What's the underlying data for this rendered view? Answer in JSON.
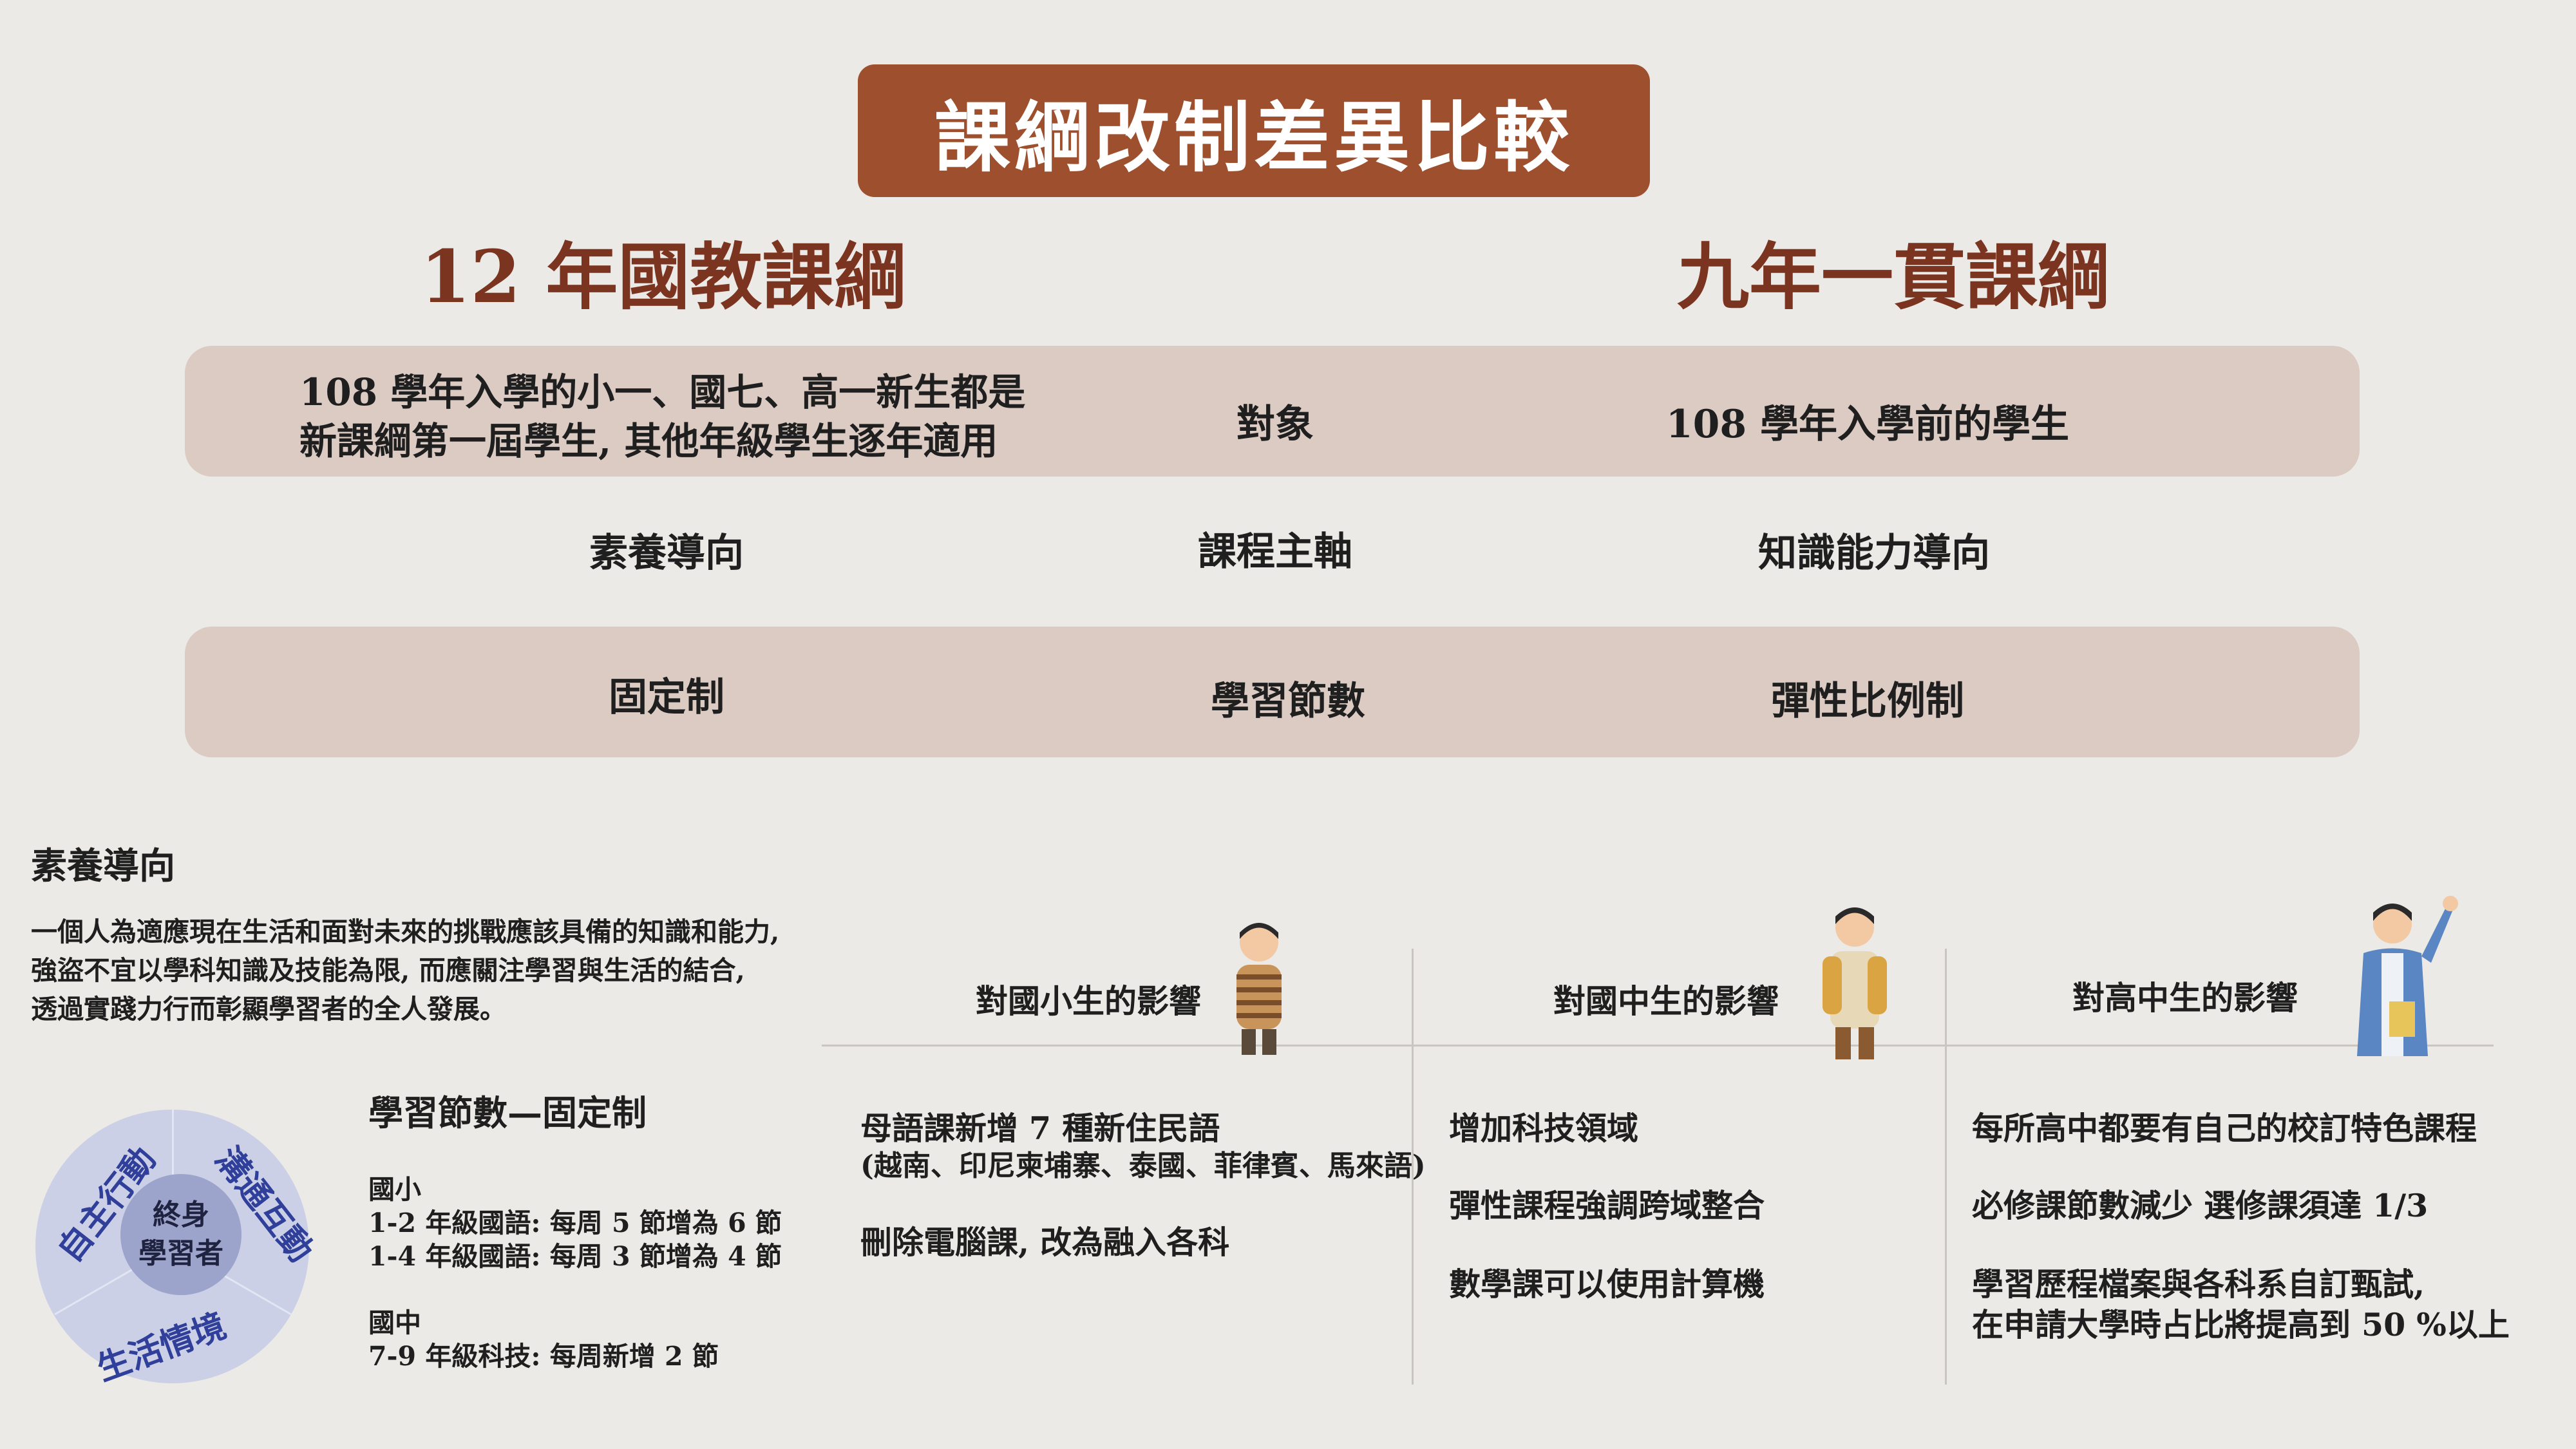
{
  "title": "課綱改制差異比較",
  "columns": {
    "left": "12 年國教課綱",
    "right": "九年一貫課綱"
  },
  "comparison": [
    {
      "criterion": "對象",
      "left_lines": [
        "108 學年入學的小一、國七、高一新生都是",
        "新課綱第一屆學生, 其他年級學生逐年適用"
      ],
      "right": "108 學年入學前的學生"
    },
    {
      "criterion": "課程主軸",
      "left": "素養導向",
      "right": "知識能力導向"
    },
    {
      "criterion": "學習節數",
      "left": "固定制",
      "right": "彈性比例制"
    }
  ],
  "definition": {
    "title": "素養導向",
    "lines": [
      "一個人為適應現在生活和面對未來的挑戰應該具備的知識和能力,",
      "強盜不宜以學科知識及技能為限, 而應關注學習與生活的結合,",
      "透過實踐力行而彰顯學習者的全人發展。"
    ]
  },
  "diagram": {
    "center": [
      "終身",
      "學習者"
    ],
    "ring": [
      "自主行動",
      "溝通互動",
      "生活情境"
    ],
    "colors": {
      "outer": "#cbd0e6",
      "inner": "#9da4cc",
      "text": "#2f3f9a"
    }
  },
  "lessons": {
    "title": "學習節數—固定制",
    "lines": [
      "國小",
      "1-2 年級國語: 每周 5 節增為 6 節",
      "1-4 年級國語: 每周 3 節增為 4 節",
      "國中",
      "7-9 年級科技: 每周新增 2 節"
    ]
  },
  "impact": {
    "elementary": {
      "heading": "對國小生的影響",
      "items": [
        "母語課新增 7 種新住民語",
        "(越南、印尼柬埔寨、泰國、菲律賓、馬來語)",
        "刪除電腦課, 改為融入各科"
      ]
    },
    "junior": {
      "heading": "對國中生的影響",
      "items": [
        "增加科技領域",
        "彈性課程強調跨域整合",
        "數學課可以使用計算機"
      ]
    },
    "senior": {
      "heading": "對高中生的影響",
      "items": [
        "每所高中都要有自己的校訂特色課程",
        "必修課節數減少 選修課須達 1/3",
        "學習歷程檔案與各科系自訂甄試,",
        "在申請大學時占比將提高到 50 %以上"
      ]
    }
  },
  "colors": {
    "accent": "#9e4f2d",
    "heading": "#7a3420",
    "band": "#dbcbc3",
    "background": "#eceae6"
  }
}
